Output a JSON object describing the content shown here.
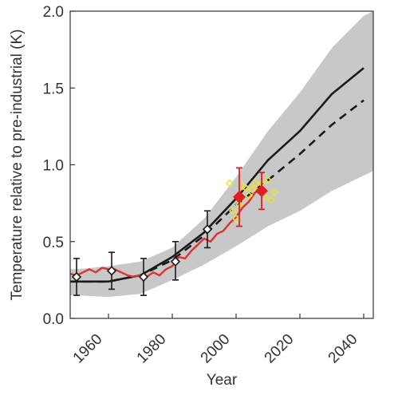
{
  "chart_data": {
    "type": "line",
    "xlabel": "Year",
    "ylabel": "Temperature relative to pre-industrial (K)",
    "xlim": [
      1948,
      2043
    ],
    "ylim": [
      0.0,
      2.0
    ],
    "xticks": [
      1960,
      1980,
      2000,
      2020,
      2040
    ],
    "yticks": [
      0.0,
      0.5,
      1.0,
      1.5,
      2.0
    ],
    "ytick_labels": [
      "0.0",
      "0.5",
      "1.0",
      "1.5",
      "2.0"
    ],
    "grid": false,
    "legend": "none",
    "colors": {
      "band": "#c8c8c8",
      "solid_line": "#1a1a1a",
      "dashed_line": "#1a1a1a",
      "observed_line": "#e03030",
      "red_points": "#e02020",
      "yellow_points": "#e8e040",
      "black_points": "#1a1a1a"
    },
    "band": {
      "x": [
        1948,
        1950,
        1960,
        1970,
        1980,
        1990,
        2000,
        2010,
        2020,
        2030,
        2040,
        2043
      ],
      "lower": [
        0.15,
        0.15,
        0.14,
        0.16,
        0.25,
        0.35,
        0.47,
        0.6,
        0.7,
        0.83,
        0.93,
        0.96
      ],
      "upper": [
        0.32,
        0.32,
        0.34,
        0.37,
        0.46,
        0.65,
        0.92,
        1.22,
        1.47,
        1.76,
        1.97,
        2.0
      ]
    },
    "series": [
      {
        "style": "solid",
        "x": [
          1948,
          1950,
          1960,
          1965,
          1970,
          1980,
          1990,
          2000,
          2010,
          2020,
          2030,
          2040
        ],
        "y": [
          0.24,
          0.24,
          0.24,
          0.26,
          0.28,
          0.4,
          0.56,
          0.78,
          1.03,
          1.22,
          1.46,
          1.63
        ]
      },
      {
        "style": "dashed",
        "x": [
          1948,
          1950,
          1960,
          1965,
          1970,
          1980,
          1990,
          2000,
          2010,
          2020,
          2030,
          2040
        ],
        "y": [
          0.24,
          0.24,
          0.24,
          0.26,
          0.28,
          0.38,
          0.54,
          0.74,
          0.9,
          1.07,
          1.26,
          1.42
        ]
      },
      {
        "style": "observed",
        "x": [
          1948,
          1950,
          1952,
          1954,
          1956,
          1958,
          1960,
          1962,
          1964,
          1966,
          1968,
          1970,
          1972,
          1974,
          1976,
          1978,
          1980,
          1982,
          1984,
          1986,
          1988,
          1990,
          1992,
          1994,
          1996,
          1998,
          2000,
          2002,
          2004,
          2006,
          2008
        ],
        "y": [
          0.29,
          0.28,
          0.3,
          0.32,
          0.3,
          0.33,
          0.32,
          0.32,
          0.3,
          0.28,
          0.27,
          0.28,
          0.27,
          0.3,
          0.28,
          0.32,
          0.34,
          0.4,
          0.39,
          0.44,
          0.48,
          0.52,
          0.5,
          0.55,
          0.57,
          0.62,
          0.66,
          0.72,
          0.76,
          0.82,
          0.84
        ]
      }
    ],
    "black_points": [
      {
        "x": 1950,
        "y": 0.27,
        "lo": 0.15,
        "hi": 0.39
      },
      {
        "x": 1961,
        "y": 0.31,
        "lo": 0.19,
        "hi": 0.43
      },
      {
        "x": 1971,
        "y": 0.27,
        "lo": 0.15,
        "hi": 0.39
      },
      {
        "x": 1981,
        "y": 0.37,
        "lo": 0.25,
        "hi": 0.5
      },
      {
        "x": 1991,
        "y": 0.58,
        "lo": 0.46,
        "hi": 0.7
      }
    ],
    "red_points": [
      {
        "x": 2001,
        "y": 0.79,
        "lo": 0.6,
        "hi": 0.98
      },
      {
        "x": 2008,
        "y": 0.83,
        "lo": 0.71,
        "hi": 0.95
      }
    ],
    "yellow_points": [
      {
        "x": 1998,
        "y": 0.88
      },
      {
        "x": 1999,
        "y": 0.7
      },
      {
        "x": 2000,
        "y": 0.65
      },
      {
        "x": 2001,
        "y": 0.74
      },
      {
        "x": 2002,
        "y": 0.86
      },
      {
        "x": 2003,
        "y": 0.85
      },
      {
        "x": 2004,
        "y": 0.8
      },
      {
        "x": 2005,
        "y": 0.84
      },
      {
        "x": 2006,
        "y": 0.88
      },
      {
        "x": 2007,
        "y": 0.86
      },
      {
        "x": 2008,
        "y": 0.88
      },
      {
        "x": 2009,
        "y": 0.79
      },
      {
        "x": 2010,
        "y": 0.9
      },
      {
        "x": 2011,
        "y": 0.77
      },
      {
        "x": 2012,
        "y": 0.82
      }
    ]
  }
}
